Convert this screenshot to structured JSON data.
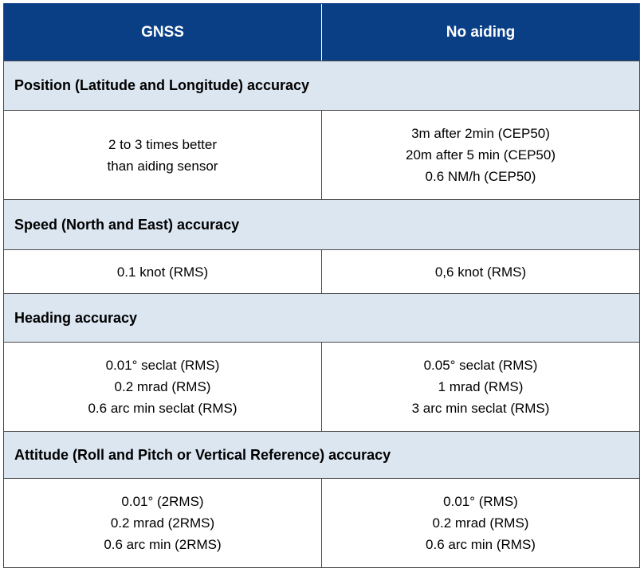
{
  "header": {
    "col1": "GNSS",
    "col2": "No aiding"
  },
  "sections": [
    {
      "title": "Position (Latitude and Longitude) accuracy",
      "gnss": [
        "2 to 3 times better",
        "than aiding sensor"
      ],
      "no_aiding": [
        "3m after 2min (CEP50)",
        "20m after 5 min (CEP50)",
        "0.6 NM/h (CEP50)"
      ]
    },
    {
      "title": "Speed (North and East) accuracy",
      "gnss": [
        "0.1 knot (RMS)"
      ],
      "no_aiding": [
        "0,6 knot (RMS)"
      ]
    },
    {
      "title": "Heading accuracy",
      "gnss": [
        "0.01° seclat (RMS)",
        "0.2 mrad (RMS)",
        "0.6 arc min seclat (RMS)"
      ],
      "no_aiding": [
        "0.05° seclat (RMS)",
        "1 mrad (RMS)",
        "3 arc min seclat (RMS)"
      ]
    },
    {
      "title": "Attitude (Roll and Pitch or Vertical Reference) accuracy",
      "gnss": [
        "0.01° (2RMS)",
        "0.2 mrad (2RMS)",
        "0.6 arc min (2RMS)"
      ],
      "no_aiding": [
        "0.01° (RMS)",
        "0.2 mrad (RMS)",
        "0.6 arc min (RMS)"
      ]
    }
  ],
  "colors": {
    "header_bg": "#0a3f86",
    "section_bg": "#dce6f1",
    "border": "#4a4a4a"
  }
}
